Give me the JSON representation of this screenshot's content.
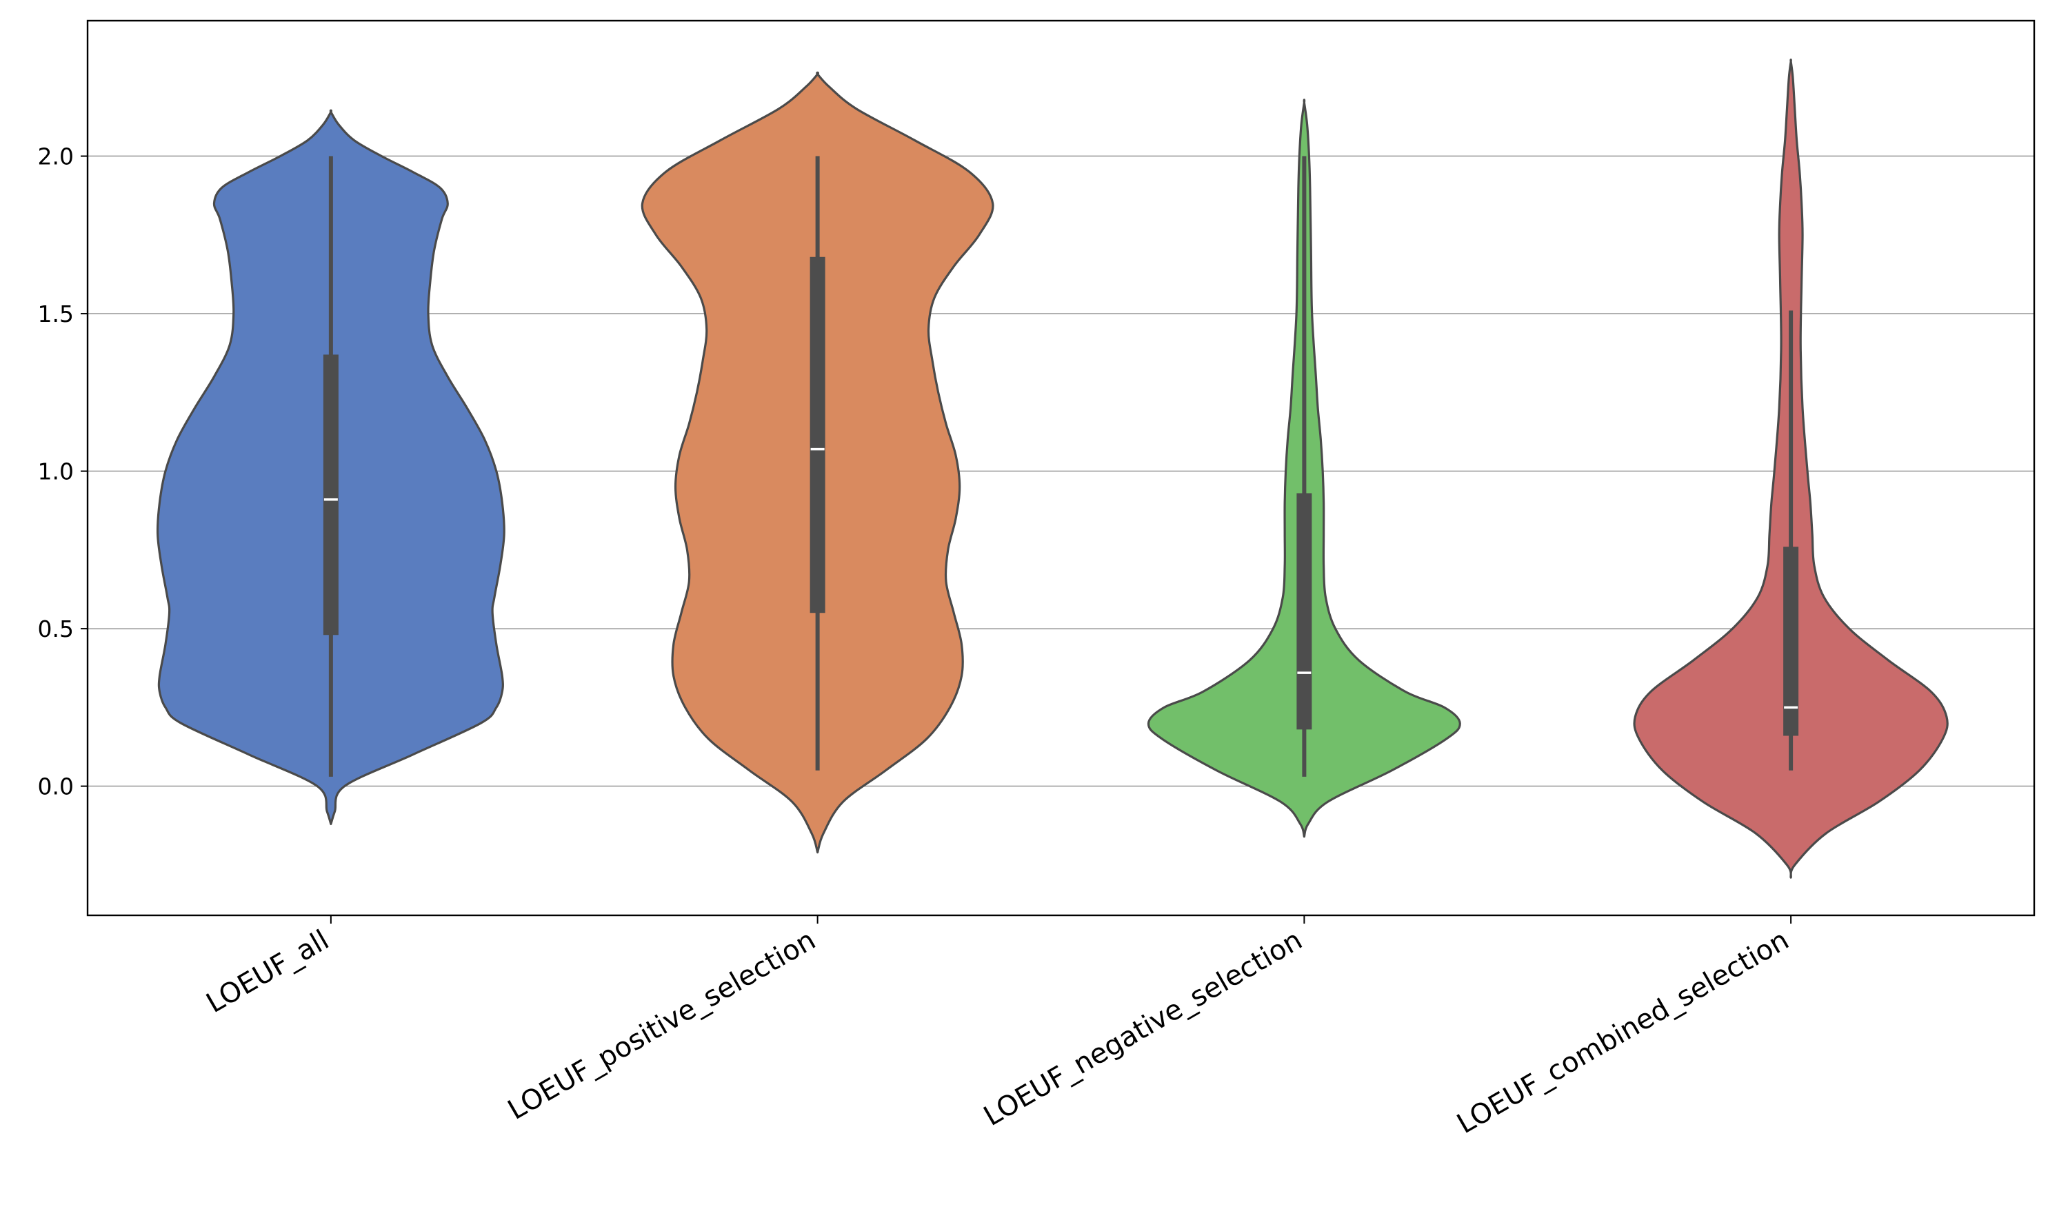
{
  "chart_data": {
    "type": "violin",
    "title": "",
    "xlabel": "",
    "ylabel": "",
    "ylim": [
      -0.41,
      2.43
    ],
    "yticks": [
      "0.0",
      "0.5",
      "1.0",
      "1.5",
      "2.0"
    ],
    "ytick_values": [
      0.0,
      0.5,
      1.0,
      1.5,
      2.0
    ],
    "grid": "horizontal",
    "categories": [
      "LOEUF_all",
      "LOEUF_positive_selection",
      "LOEUF_negative_selection",
      "LOEUF_combined_selection"
    ],
    "series": [
      {
        "category": "LOEUF_all",
        "color": "#5a7dbf",
        "box": {
          "whisker_low": 0.03,
          "q1": 0.48,
          "median": 0.91,
          "q3": 1.37,
          "whisker_high": 2.0
        },
        "density": {
          "y": [
            -0.12,
            -0.08,
            0.0,
            0.1,
            0.2,
            0.25,
            0.3,
            0.35,
            0.45,
            0.55,
            0.6,
            0.7,
            0.8,
            0.9,
            1.0,
            1.1,
            1.2,
            1.3,
            1.4,
            1.5,
            1.6,
            1.7,
            1.8,
            1.85,
            1.9,
            1.95,
            2.0,
            2.05,
            2.1,
            2.14
          ],
          "width": [
            0.0,
            0.02,
            0.07,
            0.42,
            0.77,
            0.85,
            0.88,
            0.88,
            0.85,
            0.83,
            0.84,
            0.87,
            0.89,
            0.88,
            0.85,
            0.79,
            0.7,
            0.6,
            0.52,
            0.5,
            0.51,
            0.53,
            0.57,
            0.6,
            0.56,
            0.42,
            0.26,
            0.12,
            0.04,
            0.0
          ]
        }
      },
      {
        "category": "LOEUF_positive_selection",
        "color": "#d98a5f",
        "box": {
          "whisker_low": 0.05,
          "q1": 0.55,
          "median": 1.07,
          "q3": 1.68,
          "whisker_high": 2.0
        },
        "density": {
          "y": [
            -0.21,
            -0.15,
            -0.05,
            0.05,
            0.15,
            0.25,
            0.35,
            0.45,
            0.55,
            0.65,
            0.75,
            0.85,
            0.95,
            1.05,
            1.15,
            1.25,
            1.35,
            1.45,
            1.55,
            1.65,
            1.75,
            1.85,
            1.95,
            2.05,
            2.15,
            2.22,
            2.26
          ],
          "width": [
            0.0,
            0.03,
            0.13,
            0.35,
            0.56,
            0.68,
            0.74,
            0.74,
            0.7,
            0.66,
            0.67,
            0.71,
            0.73,
            0.71,
            0.66,
            0.62,
            0.59,
            0.57,
            0.6,
            0.7,
            0.83,
            0.9,
            0.78,
            0.5,
            0.2,
            0.06,
            0.0
          ]
        }
      },
      {
        "category": "LOEUF_negative_selection",
        "color": "#72bf6a",
        "box": {
          "whisker_low": 0.03,
          "q1": 0.18,
          "median": 0.36,
          "q3": 0.93,
          "whisker_high": 2.0
        },
        "density": {
          "y": [
            -0.16,
            -0.12,
            -0.05,
            0.05,
            0.15,
            0.2,
            0.25,
            0.3,
            0.4,
            0.5,
            0.6,
            0.7,
            0.8,
            0.9,
            1.0,
            1.1,
            1.2,
            1.3,
            1.5,
            1.7,
            1.9,
            2.0,
            2.1,
            2.17
          ],
          "width": [
            0.0,
            0.02,
            0.12,
            0.45,
            0.73,
            0.8,
            0.72,
            0.52,
            0.28,
            0.16,
            0.11,
            0.1,
            0.1,
            0.1,
            0.095,
            0.085,
            0.07,
            0.06,
            0.04,
            0.035,
            0.03,
            0.025,
            0.015,
            0.0
          ]
        }
      },
      {
        "category": "LOEUF_combined_selection",
        "color": "#c96b6b",
        "box": {
          "whisker_low": 0.05,
          "q1": 0.16,
          "median": 0.25,
          "q3": 0.76,
          "whisker_high": 1.51
        },
        "density": {
          "y": [
            -0.29,
            -0.25,
            -0.15,
            -0.05,
            0.05,
            0.15,
            0.22,
            0.3,
            0.4,
            0.5,
            0.6,
            0.7,
            0.8,
            0.9,
            1.0,
            1.2,
            1.4,
            1.6,
            1.75,
            1.85,
            1.95,
            2.05,
            2.15,
            2.25,
            2.3
          ],
          "width": [
            0.0,
            0.02,
            0.18,
            0.45,
            0.66,
            0.78,
            0.8,
            0.72,
            0.5,
            0.3,
            0.17,
            0.12,
            0.11,
            0.1,
            0.085,
            0.06,
            0.05,
            0.055,
            0.06,
            0.055,
            0.045,
            0.03,
            0.02,
            0.01,
            0.0
          ]
        }
      }
    ]
  }
}
